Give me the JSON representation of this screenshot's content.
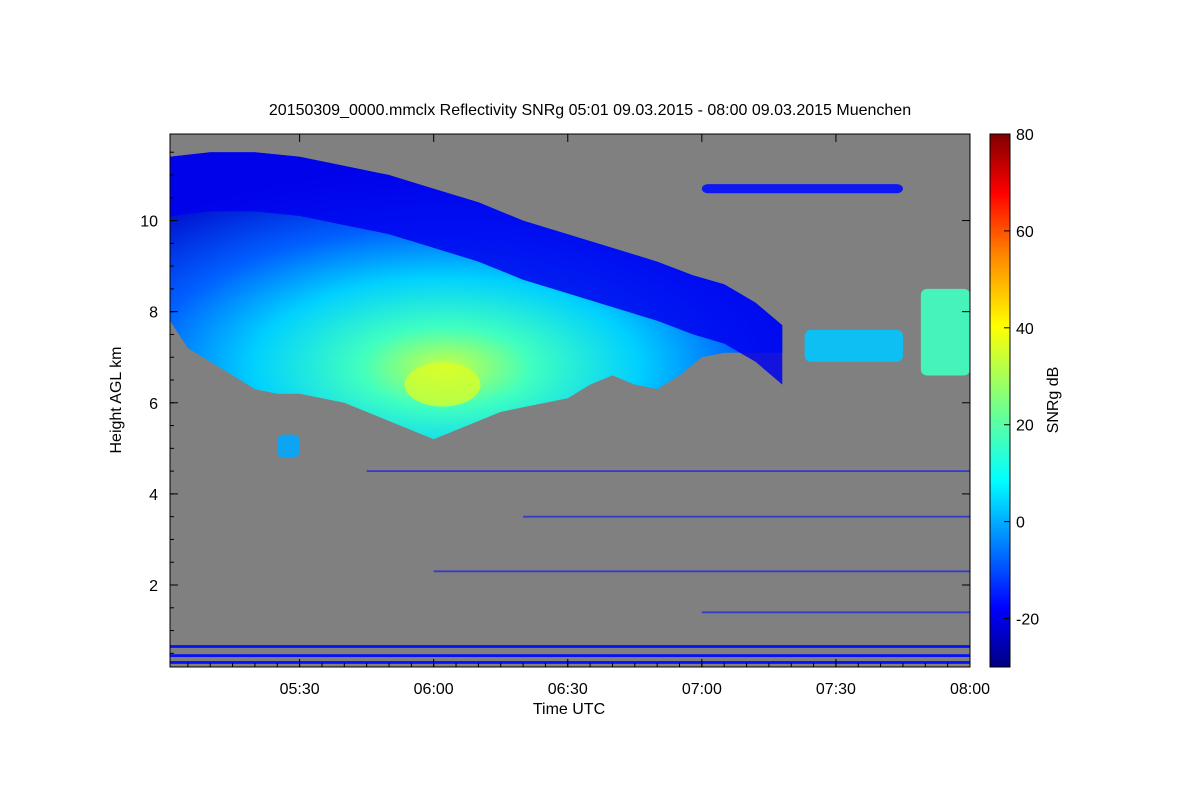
{
  "chart_data": {
    "type": "heatmap",
    "title": "20150309_0000.mmclx Reflectivity SNRg   05:01 09.03.2015 - 08:00 09.03.2015 Muenchen",
    "xlabel": "Time UTC",
    "ylabel": "Height AGL km",
    "x_range_minutes_utc": [
      301,
      480
    ],
    "x_ticks": [
      {
        "label": "05:30",
        "minutes": 330
      },
      {
        "label": "06:00",
        "minutes": 360
      },
      {
        "label": "06:30",
        "minutes": 390
      },
      {
        "label": "07:00",
        "minutes": 420
      },
      {
        "label": "07:30",
        "minutes": 450
      },
      {
        "label": "08:00",
        "minutes": 480
      }
    ],
    "y_range_km": [
      0.2,
      11.9
    ],
    "y_ticks": [
      {
        "label": "2",
        "value": 2
      },
      {
        "label": "4",
        "value": 4
      },
      {
        "label": "6",
        "value": 6
      },
      {
        "label": "8",
        "value": 8
      },
      {
        "label": "10",
        "value": 10
      }
    ],
    "background_color": "#808080",
    "colorbar": {
      "label": "SNRg dB",
      "range": [
        -30,
        80
      ],
      "ticks": [
        {
          "label": "-20",
          "value": -20
        },
        {
          "label": "0",
          "value": 0
        },
        {
          "label": "20",
          "value": 20
        },
        {
          "label": "40",
          "value": 40
        },
        {
          "label": "60",
          "value": 60
        },
        {
          "label": "80",
          "value": 80
        }
      ],
      "colormap": "jet"
    },
    "cloud_upper": [
      [
        301,
        11.4
      ],
      [
        310,
        11.5
      ],
      [
        320,
        11.5
      ],
      [
        330,
        11.4
      ],
      [
        340,
        11.2
      ],
      [
        350,
        11.0
      ],
      [
        360,
        10.7
      ],
      [
        370,
        10.4
      ],
      [
        380,
        10.0
      ],
      [
        390,
        9.7
      ],
      [
        400,
        9.4
      ],
      [
        410,
        9.1
      ],
      [
        418,
        8.8
      ],
      [
        425,
        8.6
      ],
      [
        432,
        8.2
      ],
      [
        438,
        7.7
      ]
    ],
    "cloud_lower": [
      [
        301,
        7.8
      ],
      [
        305,
        7.2
      ],
      [
        310,
        6.9
      ],
      [
        315,
        6.6
      ],
      [
        320,
        6.3
      ],
      [
        325,
        6.2
      ],
      [
        330,
        6.2
      ],
      [
        335,
        6.1
      ],
      [
        340,
        6.0
      ],
      [
        345,
        5.8
      ],
      [
        350,
        5.6
      ],
      [
        355,
        5.4
      ],
      [
        360,
        5.2
      ],
      [
        365,
        5.4
      ],
      [
        370,
        5.6
      ],
      [
        375,
        5.8
      ],
      [
        380,
        5.9
      ],
      [
        385,
        6.0
      ],
      [
        390,
        6.1
      ],
      [
        395,
        6.4
      ],
      [
        400,
        6.6
      ],
      [
        405,
        6.4
      ],
      [
        410,
        6.3
      ],
      [
        415,
        6.6
      ],
      [
        420,
        7.0
      ],
      [
        425,
        7.1
      ],
      [
        430,
        7.1
      ],
      [
        438,
        7.1
      ]
    ],
    "cloud_core": {
      "time_minutes": 362,
      "height_km": 6.4,
      "snr_db": 35
    },
    "features": [
      {
        "name": "cirrus-band-07",
        "t0": 420,
        "t1": 465,
        "h0": 10.6,
        "h1": 10.8,
        "snr_db": -15
      },
      {
        "name": "cloud-fragment-0730",
        "t0": 443,
        "t1": 465,
        "h0": 6.9,
        "h1": 7.6,
        "snr_db": 5
      },
      {
        "name": "cloud-fragment-0750",
        "t0": 469,
        "t1": 480,
        "h0": 6.6,
        "h1": 8.5,
        "snr_db": 18
      },
      {
        "name": "cloud-fragment-0530",
        "t0": 325,
        "t1": 330,
        "h0": 4.8,
        "h1": 5.3,
        "snr_db": 2
      },
      {
        "name": "low-level-clutter-lines",
        "heights_km": [
          0.3,
          0.45,
          0.65,
          2.3,
          4.5,
          3.5,
          1.4
        ],
        "snr_db": -15
      }
    ]
  }
}
